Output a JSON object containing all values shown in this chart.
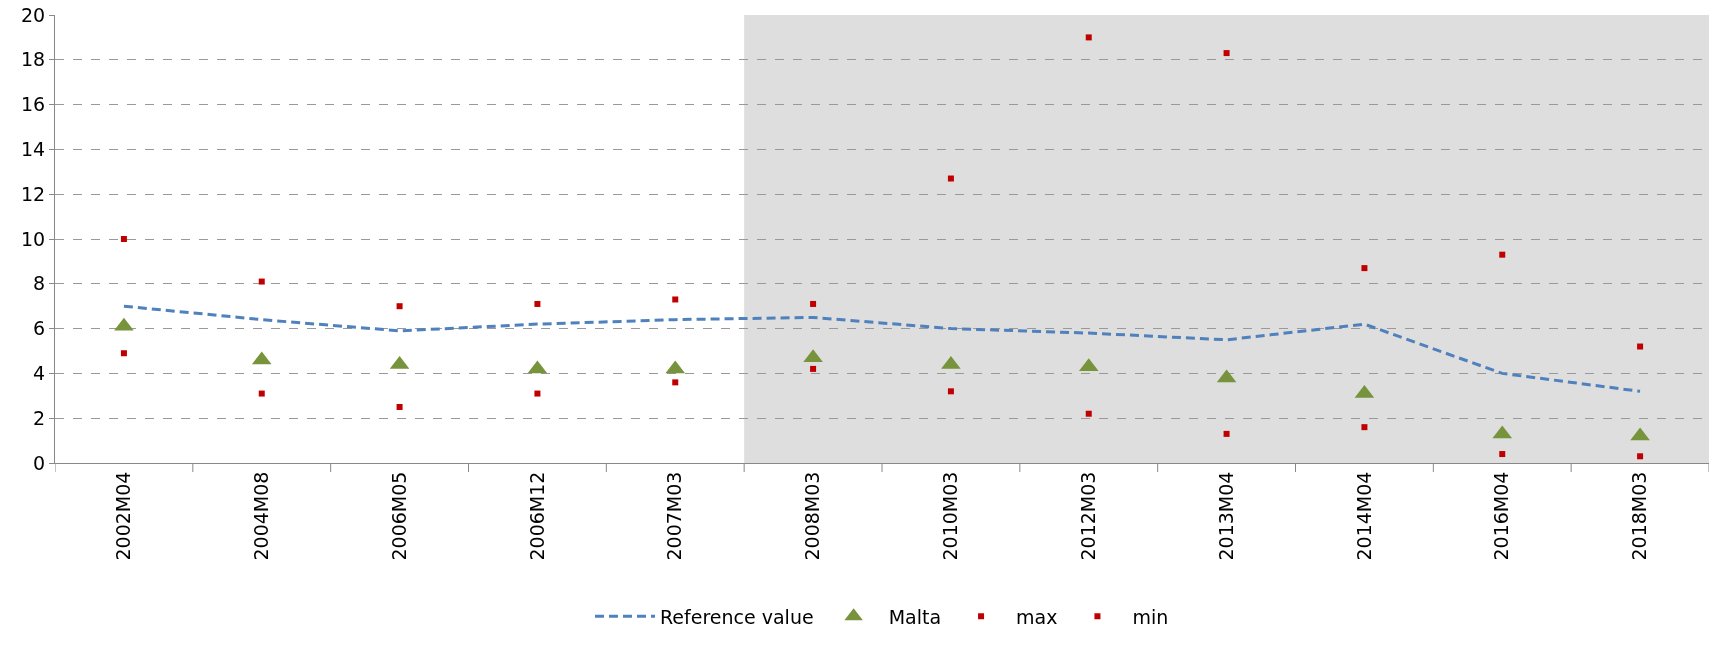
{
  "chart_data": {
    "type": "line",
    "categories": [
      "2002M04",
      "2004M08",
      "2006M05",
      "2006M12",
      "2007M03",
      "2008M03",
      "2010M03",
      "2012M03",
      "2013M04",
      "2014M04",
      "2016M04",
      "2018M03"
    ],
    "series": [
      {
        "name": "Reference value",
        "color": "#4f81bd",
        "line_style": "dashed",
        "marker": "none",
        "values": [
          7.0,
          6.4,
          5.9,
          6.2,
          6.4,
          6.5,
          6.0,
          5.8,
          5.5,
          6.2,
          4.0,
          3.2
        ]
      },
      {
        "name": "Malta",
        "type": "scatter",
        "color": "#77933c",
        "marker": "triangle",
        "values": [
          6.1,
          4.6,
          4.4,
          4.2,
          4.2,
          4.7,
          4.4,
          4.3,
          3.8,
          3.1,
          1.3,
          1.2
        ]
      },
      {
        "name": "max",
        "type": "scatter",
        "color": "#c00000",
        "marker": "square",
        "values": [
          10.0,
          8.1,
          7.0,
          7.1,
          7.3,
          7.1,
          12.7,
          19.0,
          18.3,
          8.7,
          9.3,
          5.2
        ]
      },
      {
        "name": "min",
        "type": "scatter",
        "color": "#c00000",
        "marker": "square",
        "values": [
          4.9,
          3.1,
          2.5,
          3.1,
          3.6,
          4.2,
          3.2,
          2.2,
          1.3,
          1.6,
          0.4,
          0.3
        ]
      }
    ],
    "ylim": [
      0,
      20
    ],
    "yticks": [
      0,
      2,
      4,
      6,
      8,
      10,
      12,
      14,
      16,
      18,
      20
    ],
    "grid": "y",
    "legend": "bottom",
    "bands": [
      {
        "axis": "x",
        "from": "2008M03",
        "to": "2018M03",
        "color": "#dedede"
      }
    ]
  }
}
